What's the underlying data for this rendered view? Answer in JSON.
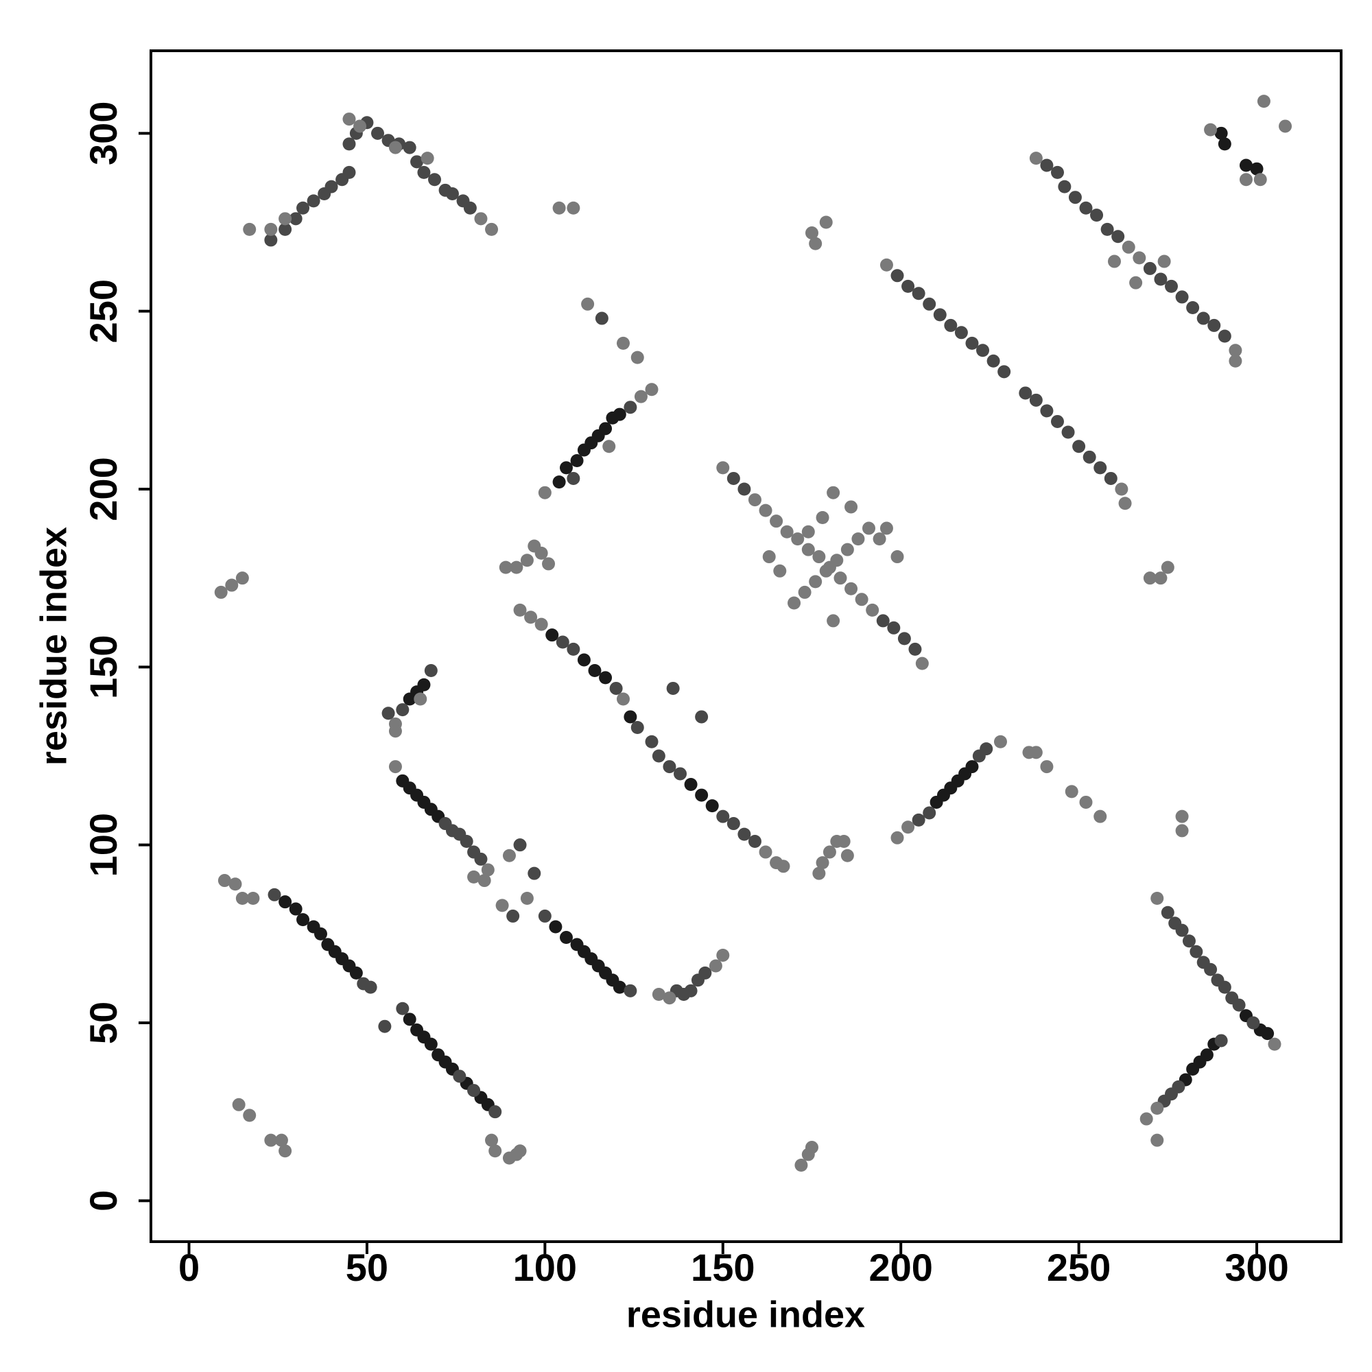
{
  "chart_data": {
    "type": "scatter",
    "x_label": "residue index",
    "y_label": "residue index",
    "xlim": [
      -10.7,
      323.7
    ],
    "ylim": [
      -11.5,
      323.2
    ],
    "xticks": [
      0,
      50,
      100,
      150,
      200,
      250,
      300
    ],
    "yticks": [
      0,
      50,
      100,
      150,
      200,
      250,
      300
    ],
    "grid": false,
    "series": [
      {
        "color": "#1a1a1a",
        "x": [
          104,
          106,
          109,
          111,
          113,
          115,
          117,
          119,
          121,
          27,
          30,
          32,
          35,
          37,
          39,
          41,
          43,
          45,
          47,
          62,
          64,
          66,
          68,
          70,
          72,
          74,
          78,
          82,
          84,
          103,
          106,
          109,
          111,
          113,
          115,
          117,
          119,
          121,
          60,
          62,
          64,
          66,
          68,
          70,
          62,
          64,
          66,
          102,
          111,
          114,
          117,
          124,
          141,
          144,
          147,
          210,
          212,
          214,
          216,
          218,
          220,
          280,
          282,
          284,
          286,
          288,
          290,
          291,
          297,
          300,
          301,
          303,
          297
        ],
        "y": [
          202,
          206,
          208,
          211,
          213,
          215,
          217,
          220,
          221,
          84,
          82,
          79,
          77,
          75,
          72,
          70,
          68,
          66,
          64,
          51,
          48,
          46,
          44,
          41,
          39,
          37,
          33,
          29,
          27,
          77,
          74,
          72,
          70,
          68,
          66,
          64,
          62,
          60,
          118,
          116,
          114,
          112,
          110,
          108,
          141,
          143,
          145,
          159,
          152,
          149,
          147,
          136,
          117,
          114,
          111,
          112,
          114,
          116,
          118,
          120,
          122,
          34,
          37,
          39,
          41,
          44,
          300,
          297,
          291,
          290,
          48,
          47,
          52
        ]
      },
      {
        "color": "#484848",
        "x": [
          23,
          27,
          30,
          32,
          35,
          38,
          40,
          43,
          45,
          45,
          47,
          50,
          53,
          56,
          59,
          62,
          64,
          66,
          69,
          72,
          74,
          77,
          79,
          241,
          244,
          246,
          249,
          252,
          255,
          258,
          261,
          270,
          273,
          276,
          279,
          282,
          285,
          288,
          291,
          199,
          202,
          205,
          208,
          211,
          214,
          217,
          220,
          223,
          226,
          229,
          235,
          238,
          241,
          244,
          247,
          250,
          253,
          256,
          259,
          275,
          277,
          279,
          281,
          283,
          285,
          287,
          289,
          291,
          293,
          295,
          299,
          105,
          108,
          120,
          126,
          130,
          132,
          135,
          138,
          150,
          153,
          156,
          159,
          24,
          49,
          51,
          55,
          60,
          76,
          80,
          86,
          91,
          100,
          124,
          97,
          93,
          137,
          139,
          141,
          143,
          145,
          72,
          74,
          76,
          78,
          80,
          82,
          56,
          60,
          68,
          153,
          156,
          195,
          198,
          201,
          204,
          205,
          208,
          222,
          224,
          274,
          276,
          278,
          290,
          136,
          144,
          116,
          124,
          108
        ],
        "y": [
          270,
          273,
          276,
          279,
          281,
          283,
          285,
          287,
          289,
          297,
          300,
          303,
          300,
          298,
          297,
          296,
          292,
          289,
          287,
          284,
          283,
          281,
          279,
          291,
          289,
          285,
          282,
          279,
          277,
          273,
          271,
          262,
          259,
          257,
          254,
          251,
          248,
          246,
          243,
          260,
          257,
          255,
          252,
          249,
          246,
          244,
          241,
          239,
          236,
          233,
          227,
          225,
          222,
          219,
          216,
          212,
          209,
          206,
          203,
          81,
          78,
          76,
          73,
          70,
          67,
          65,
          62,
          60,
          57,
          55,
          50,
          157,
          155,
          144,
          133,
          129,
          125,
          122,
          120,
          108,
          106,
          103,
          101,
          86,
          61,
          60,
          49,
          54,
          35,
          31,
          25,
          80,
          80,
          59,
          92,
          100,
          59,
          58,
          59,
          62,
          64,
          106,
          104,
          103,
          101,
          98,
          96,
          137,
          138,
          149,
          203,
          200,
          163,
          161,
          158,
          155,
          107,
          109,
          125,
          127,
          28,
          30,
          32,
          45,
          144,
          136,
          248,
          223,
          203
        ]
      },
      {
        "color": "#7a7a7a",
        "x": [
          17,
          23,
          27,
          85,
          82,
          58,
          67,
          48,
          45,
          238,
          264,
          267,
          294,
          274,
          266,
          260,
          294,
          196,
          262,
          263,
          100,
          127,
          130,
          118,
          150,
          159,
          162,
          165,
          168,
          171,
          174,
          177,
          180,
          183,
          186,
          189,
          192,
          206,
          170,
          173,
          176,
          179,
          182,
          185,
          188,
          191,
          194,
          196,
          174,
          178,
          181,
          186,
          181,
          199,
          166,
          163,
          93,
          96,
          99,
          122,
          162,
          165,
          167,
          58,
          84,
          83,
          80,
          90,
          58,
          65,
          58,
          88,
          95,
          132,
          135,
          148,
          150,
          85,
          86,
          10,
          13,
          15,
          18,
          14,
          17,
          23,
          27,
          26,
          9,
          12,
          15,
          90,
          92,
          93,
          89,
          92,
          95,
          99,
          101,
          97,
          104,
          108,
          112,
          122,
          126,
          175,
          179,
          176,
          172,
          174,
          175,
          177,
          178,
          180,
          184,
          182,
          185,
          199,
          202,
          228,
          236,
          238,
          241,
          248,
          252,
          256,
          279,
          279,
          270,
          273,
          275,
          272,
          305,
          269,
          272,
          272,
          287,
          302,
          308,
          297,
          301
        ],
        "y": [
          273,
          273,
          276,
          273,
          276,
          296,
          293,
          302,
          304,
          293,
          268,
          265,
          239,
          264,
          258,
          264,
          236,
          263,
          200,
          196,
          199,
          226,
          228,
          212,
          206,
          197,
          194,
          191,
          188,
          186,
          183,
          181,
          178,
          175,
          172,
          169,
          166,
          151,
          168,
          171,
          174,
          177,
          180,
          183,
          186,
          189,
          186,
          189,
          188,
          192,
          199,
          195,
          163,
          181,
          177,
          181,
          166,
          164,
          162,
          141,
          98,
          95,
          94,
          122,
          93,
          90,
          91,
          97,
          134,
          141,
          132,
          83,
          85,
          58,
          57,
          66,
          69,
          17,
          14,
          90,
          89,
          85,
          85,
          27,
          24,
          17,
          14,
          17,
          171,
          173,
          175,
          12,
          13,
          14,
          178,
          178,
          180,
          182,
          179,
          184,
          279,
          279,
          252,
          241,
          237,
          272,
          275,
          269,
          10,
          13,
          15,
          92,
          95,
          98,
          101,
          101,
          97,
          102,
          105,
          129,
          126,
          126,
          122,
          115,
          112,
          108,
          108,
          104,
          175,
          175,
          178,
          85,
          44,
          23,
          26,
          17,
          301,
          309,
          302,
          287,
          287
        ]
      }
    ]
  }
}
